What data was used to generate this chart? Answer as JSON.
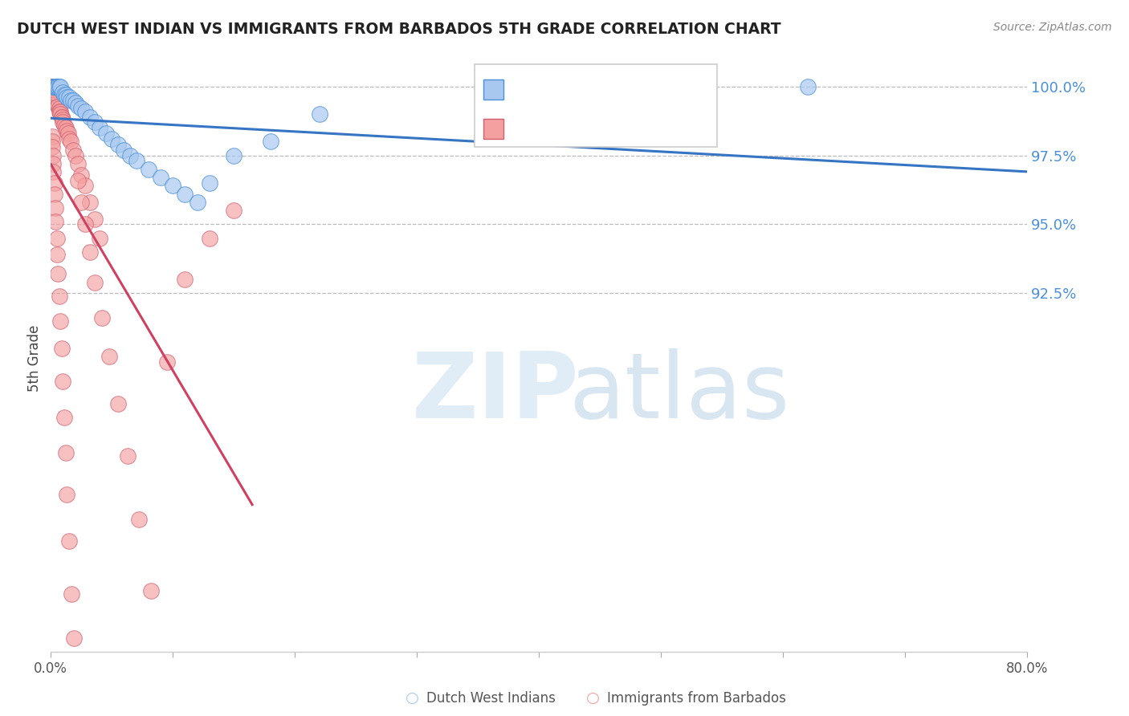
{
  "title": "DUTCH WEST INDIAN VS IMMIGRANTS FROM BARBADOS 5TH GRADE CORRELATION CHART",
  "source": "Source: ZipAtlas.com",
  "ylabel": "5th Grade",
  "xlim": [
    0.0,
    0.8
  ],
  "ylim": [
    0.795,
    1.008
  ],
  "xticks": [
    0.0,
    0.1,
    0.2,
    0.3,
    0.4,
    0.5,
    0.6,
    0.7,
    0.8
  ],
  "xticklabels": [
    "0.0%",
    "",
    "",
    "",
    "",
    "",
    "",
    "",
    "80.0%"
  ],
  "yticks_right": [
    1.0,
    0.975,
    0.95,
    0.925
  ],
  "ytick_right_labels": [
    "100.0%",
    "97.5%",
    "95.0%",
    "92.5%"
  ],
  "blue_fill": "#A8C8F0",
  "blue_edge": "#4A90D9",
  "pink_fill": "#F4A0A0",
  "pink_edge": "#D06070",
  "blue_line": "#3575C4",
  "pink_line": "#D04060",
  "legend_label_blue": "Dutch West Indians",
  "legend_label_pink": "Immigrants from Barbados",
  "blue_x": [
    0.002,
    0.003,
    0.003,
    0.004,
    0.005,
    0.006,
    0.007,
    0.008,
    0.01,
    0.011,
    0.012,
    0.013,
    0.015,
    0.016,
    0.018,
    0.02,
    0.022,
    0.025,
    0.028,
    0.032,
    0.036,
    0.04,
    0.045,
    0.05,
    0.055,
    0.06,
    0.065,
    0.07,
    0.08,
    0.09,
    0.1,
    0.11,
    0.12,
    0.13,
    0.15,
    0.18,
    0.22,
    0.62
  ],
  "blue_y": [
    1.0,
    1.0,
    1.0,
    1.0,
    1.0,
    1.0,
    1.0,
    1.0,
    0.998,
    0.997,
    0.997,
    0.996,
    0.996,
    0.995,
    0.995,
    0.994,
    0.993,
    0.992,
    0.991,
    0.989,
    0.987,
    0.985,
    0.983,
    0.981,
    0.979,
    0.977,
    0.975,
    0.973,
    0.97,
    0.967,
    0.964,
    0.961,
    0.958,
    0.965,
    0.975,
    0.98,
    0.99,
    1.0
  ],
  "pink_x": [
    0.001,
    0.001,
    0.001,
    0.001,
    0.001,
    0.001,
    0.001,
    0.002,
    0.002,
    0.002,
    0.002,
    0.002,
    0.002,
    0.003,
    0.003,
    0.003,
    0.003,
    0.004,
    0.004,
    0.004,
    0.005,
    0.005,
    0.005,
    0.006,
    0.006,
    0.007,
    0.007,
    0.008,
    0.008,
    0.009,
    0.009,
    0.01,
    0.01,
    0.011,
    0.012,
    0.013,
    0.014,
    0.015,
    0.016,
    0.018,
    0.02,
    0.022,
    0.025,
    0.028,
    0.032,
    0.036,
    0.04,
    0.001,
    0.001,
    0.001,
    0.002,
    0.002,
    0.002,
    0.003,
    0.003,
    0.004,
    0.004,
    0.005,
    0.005,
    0.006,
    0.007,
    0.008,
    0.009,
    0.01,
    0.011,
    0.012,
    0.013,
    0.015,
    0.017,
    0.019,
    0.022,
    0.025,
    0.028,
    0.032,
    0.036,
    0.042,
    0.048,
    0.055,
    0.063,
    0.072,
    0.082,
    0.095,
    0.11,
    0.13,
    0.15,
    0.001,
    0.001
  ],
  "pink_y": [
    1.0,
    1.0,
    1.0,
    1.0,
    1.0,
    1.0,
    0.999,
    0.999,
    0.999,
    0.999,
    0.998,
    0.998,
    0.998,
    0.997,
    0.997,
    0.997,
    0.996,
    0.996,
    0.996,
    0.995,
    0.995,
    0.994,
    0.994,
    0.993,
    0.993,
    0.992,
    0.991,
    0.991,
    0.99,
    0.989,
    0.989,
    0.988,
    0.987,
    0.986,
    0.985,
    0.984,
    0.983,
    0.981,
    0.98,
    0.977,
    0.975,
    0.972,
    0.968,
    0.964,
    0.958,
    0.952,
    0.945,
    0.982,
    0.98,
    0.978,
    0.975,
    0.972,
    0.969,
    0.965,
    0.961,
    0.956,
    0.951,
    0.945,
    0.939,
    0.932,
    0.924,
    0.915,
    0.905,
    0.893,
    0.88,
    0.867,
    0.852,
    0.835,
    0.816,
    0.8,
    0.966,
    0.958,
    0.95,
    0.94,
    0.929,
    0.916,
    0.902,
    0.885,
    0.866,
    0.843,
    0.817,
    0.9,
    0.93,
    0.945,
    0.955,
    0.999,
    0.998
  ]
}
